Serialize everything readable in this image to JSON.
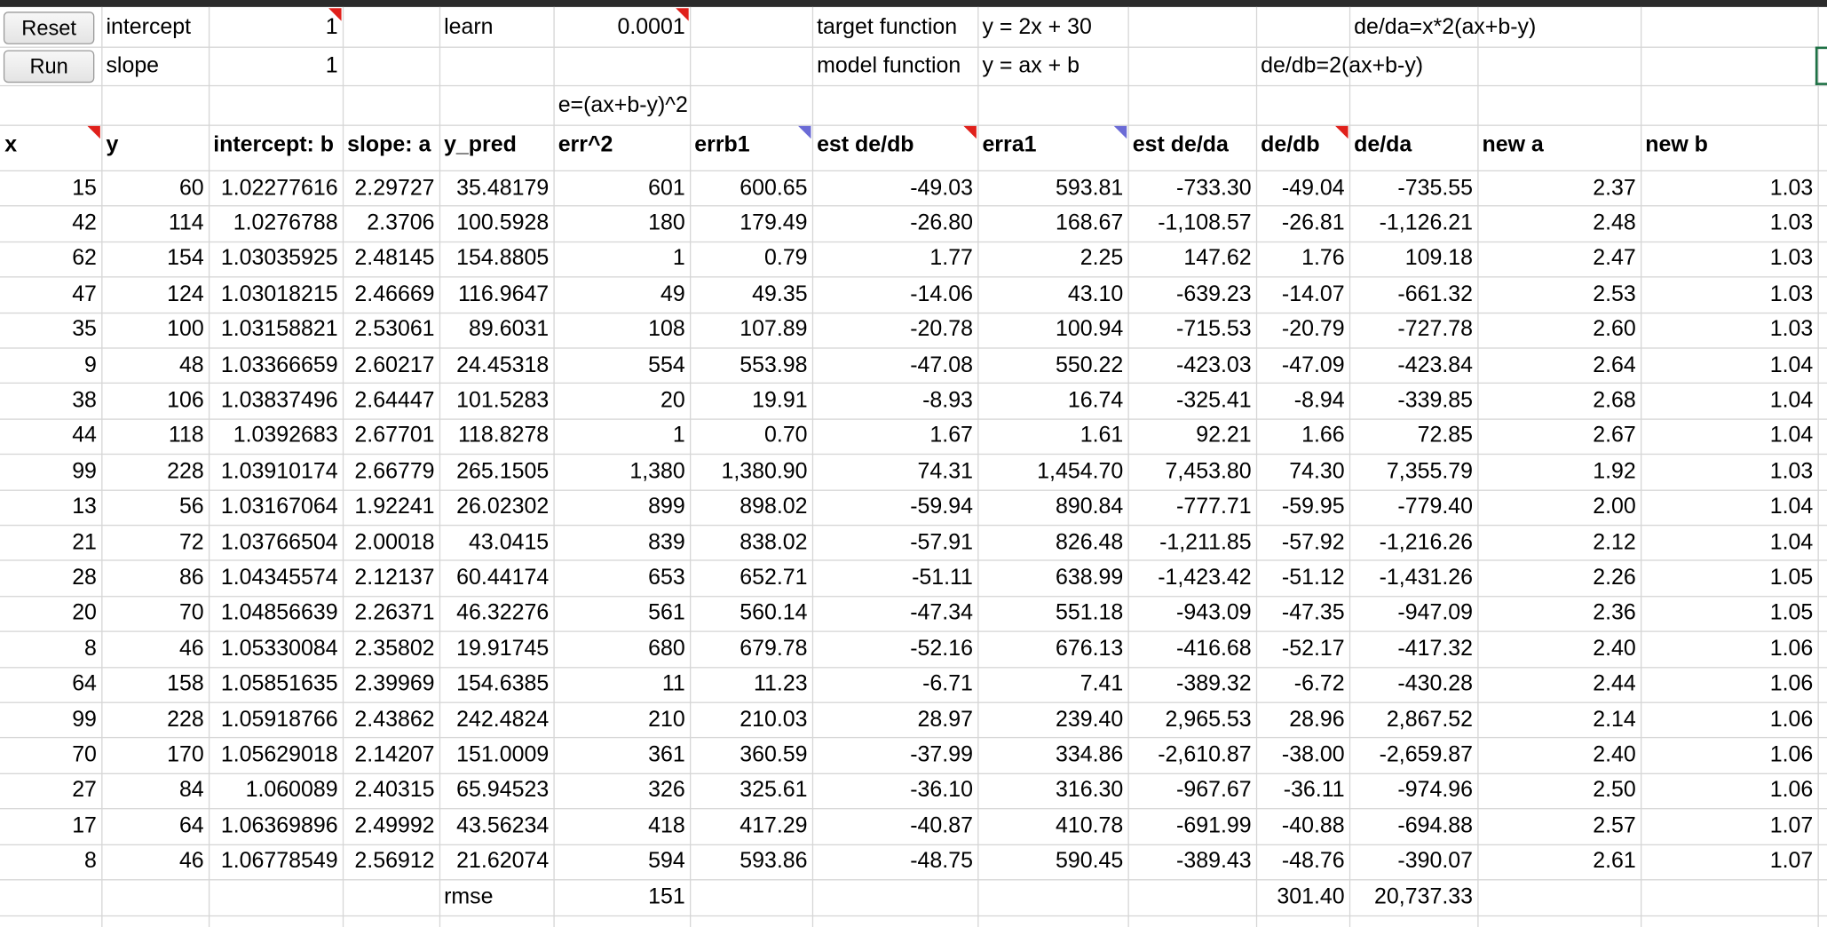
{
  "controls": {
    "reset": "Reset",
    "run": "Run"
  },
  "parameters": [
    {
      "label": "intercept",
      "value": "1"
    },
    {
      "label": "slope",
      "value": "1"
    }
  ],
  "learn": {
    "label": "learn",
    "value": "0.0001"
  },
  "functions": [
    {
      "label": "target function",
      "formula": "y = 2x + 30"
    },
    {
      "label": "model function",
      "formula": "y = ax + b"
    }
  ],
  "error_formula": "e=(ax+b-y)^2",
  "gradient_formulas": {
    "de_da": "de/da=x*2(ax+b-y)",
    "de_db": "de/db=2(ax+b-y)"
  },
  "table": {
    "headers": [
      "x",
      "y",
      "intercept: b",
      "slope: a",
      "y_pred",
      "err^2",
      "errb1",
      "est de/db",
      "erra1",
      "est de/da",
      "de/db",
      "de/da",
      "new a",
      "new b"
    ],
    "rows": [
      [
        "15",
        "60",
        "1.02277616",
        "2.29727",
        "35.48179",
        "601",
        "600.65",
        "-49.03",
        "593.81",
        "-733.30",
        "-49.04",
        "-735.55",
        "2.37",
        "1.03"
      ],
      [
        "42",
        "114",
        "1.0276788",
        "2.3706",
        "100.5928",
        "180",
        "179.49",
        "-26.80",
        "168.67",
        "-1,108.57",
        "-26.81",
        "-1,126.21",
        "2.48",
        "1.03"
      ],
      [
        "62",
        "154",
        "1.03035925",
        "2.48145",
        "154.8805",
        "1",
        "0.79",
        "1.77",
        "2.25",
        "147.62",
        "1.76",
        "109.18",
        "2.47",
        "1.03"
      ],
      [
        "47",
        "124",
        "1.03018215",
        "2.46669",
        "116.9647",
        "49",
        "49.35",
        "-14.06",
        "43.10",
        "-639.23",
        "-14.07",
        "-661.32",
        "2.53",
        "1.03"
      ],
      [
        "35",
        "100",
        "1.03158821",
        "2.53061",
        "89.6031",
        "108",
        "107.89",
        "-20.78",
        "100.94",
        "-715.53",
        "-20.79",
        "-727.78",
        "2.60",
        "1.03"
      ],
      [
        "9",
        "48",
        "1.03366659",
        "2.60217",
        "24.45318",
        "554",
        "553.98",
        "-47.08",
        "550.22",
        "-423.03",
        "-47.09",
        "-423.84",
        "2.64",
        "1.04"
      ],
      [
        "38",
        "106",
        "1.03837496",
        "2.64447",
        "101.5283",
        "20",
        "19.91",
        "-8.93",
        "16.74",
        "-325.41",
        "-8.94",
        "-339.85",
        "2.68",
        "1.04"
      ],
      [
        "44",
        "118",
        "1.0392683",
        "2.67701",
        "118.8278",
        "1",
        "0.70",
        "1.67",
        "1.61",
        "92.21",
        "1.66",
        "72.85",
        "2.67",
        "1.04"
      ],
      [
        "99",
        "228",
        "1.03910174",
        "2.66779",
        "265.1505",
        "1,380",
        "1,380.90",
        "74.31",
        "1,454.70",
        "7,453.80",
        "74.30",
        "7,355.79",
        "1.92",
        "1.03"
      ],
      [
        "13",
        "56",
        "1.03167064",
        "1.92241",
        "26.02302",
        "899",
        "898.02",
        "-59.94",
        "890.84",
        "-777.71",
        "-59.95",
        "-779.40",
        "2.00",
        "1.04"
      ],
      [
        "21",
        "72",
        "1.03766504",
        "2.00018",
        "43.0415",
        "839",
        "838.02",
        "-57.91",
        "826.48",
        "-1,211.85",
        "-57.92",
        "-1,216.26",
        "2.12",
        "1.04"
      ],
      [
        "28",
        "86",
        "1.04345574",
        "2.12137",
        "60.44174",
        "653",
        "652.71",
        "-51.11",
        "638.99",
        "-1,423.42",
        "-51.12",
        "-1,431.26",
        "2.26",
        "1.05"
      ],
      [
        "20",
        "70",
        "1.04856639",
        "2.26371",
        "46.32276",
        "561",
        "560.14",
        "-47.34",
        "551.18",
        "-943.09",
        "-47.35",
        "-947.09",
        "2.36",
        "1.05"
      ],
      [
        "8",
        "46",
        "1.05330084",
        "2.35802",
        "19.91745",
        "680",
        "679.78",
        "-52.16",
        "676.13",
        "-416.68",
        "-52.17",
        "-417.32",
        "2.40",
        "1.06"
      ],
      [
        "64",
        "158",
        "1.05851635",
        "2.39969",
        "154.6385",
        "11",
        "11.23",
        "-6.71",
        "7.41",
        "-389.32",
        "-6.72",
        "-430.28",
        "2.44",
        "1.06"
      ],
      [
        "99",
        "228",
        "1.05918766",
        "2.43862",
        "242.4824",
        "210",
        "210.03",
        "28.97",
        "239.40",
        "2,965.53",
        "28.96",
        "2,867.52",
        "2.14",
        "1.06"
      ],
      [
        "70",
        "170",
        "1.05629018",
        "2.14207",
        "151.0009",
        "361",
        "360.59",
        "-37.99",
        "334.86",
        "-2,610.87",
        "-38.00",
        "-2,659.87",
        "2.40",
        "1.06"
      ],
      [
        "27",
        "84",
        "1.060089",
        "2.40315",
        "65.94523",
        "326",
        "325.61",
        "-36.10",
        "316.30",
        "-967.67",
        "-36.11",
        "-974.96",
        "2.50",
        "1.06"
      ],
      [
        "17",
        "64",
        "1.06369896",
        "2.49992",
        "43.56234",
        "418",
        "417.29",
        "-40.87",
        "410.78",
        "-691.99",
        "-40.88",
        "-694.88",
        "2.57",
        "1.07"
      ],
      [
        "8",
        "46",
        "1.06778549",
        "2.56912",
        "21.62074",
        "594",
        "593.86",
        "-48.75",
        "590.45",
        "-389.43",
        "-48.76",
        "-390.07",
        "2.61",
        "1.07"
      ]
    ]
  },
  "footer": {
    "label": "rmse",
    "err2": "151",
    "de_db": "301.40",
    "de_da": "20,737.33"
  }
}
